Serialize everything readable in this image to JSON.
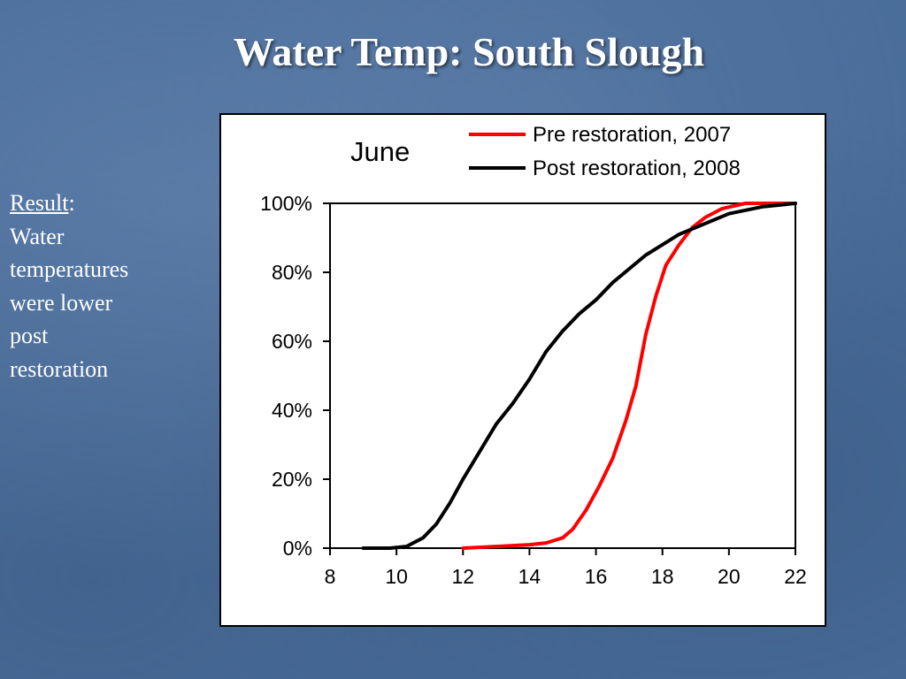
{
  "slide": {
    "title": "Water Temp: South Slough"
  },
  "result": {
    "label": "Result",
    "colon": ":",
    "lines": [
      "Water",
      "temperatures",
      "were lower",
      "post",
      "restoration"
    ]
  },
  "chart_data": {
    "type": "line",
    "title": "June",
    "xlabel": "",
    "ylabel": "",
    "xlim": [
      8,
      22
    ],
    "ylim": [
      0,
      100
    ],
    "x_ticks": [
      8,
      10,
      12,
      14,
      16,
      18,
      20,
      22
    ],
    "y_ticks": [
      "0%",
      "20%",
      "40%",
      "60%",
      "80%",
      "100%"
    ],
    "y_tick_values": [
      0,
      20,
      40,
      60,
      80,
      100
    ],
    "grid": false,
    "legend_position": "top-right",
    "series": [
      {
        "name": "Pre restoration, 2007",
        "color": "#ff0000",
        "points": [
          [
            12,
            0
          ],
          [
            13,
            0.5
          ],
          [
            14,
            1
          ],
          [
            14.5,
            1.5
          ],
          [
            15,
            3
          ],
          [
            15.3,
            5.5
          ],
          [
            15.7,
            11
          ],
          [
            16.1,
            18
          ],
          [
            16.5,
            26
          ],
          [
            16.9,
            37
          ],
          [
            17.2,
            47
          ],
          [
            17.5,
            62
          ],
          [
            17.8,
            73
          ],
          [
            18.1,
            82
          ],
          [
            18.5,
            88
          ],
          [
            18.9,
            93
          ],
          [
            19.3,
            96
          ],
          [
            19.8,
            98.5
          ],
          [
            20.5,
            100
          ],
          [
            21.5,
            100
          ],
          [
            22,
            100
          ]
        ]
      },
      {
        "name": "Post restoration, 2008",
        "color": "#000000",
        "points": [
          [
            9,
            0
          ],
          [
            9.8,
            0
          ],
          [
            10.3,
            0.5
          ],
          [
            10.8,
            3
          ],
          [
            11.2,
            7
          ],
          [
            11.6,
            13
          ],
          [
            12,
            20
          ],
          [
            12.5,
            28
          ],
          [
            13,
            36
          ],
          [
            13.5,
            42
          ],
          [
            14,
            49
          ],
          [
            14.5,
            57
          ],
          [
            15,
            63
          ],
          [
            15.5,
            68
          ],
          [
            16,
            72
          ],
          [
            16.5,
            77
          ],
          [
            17,
            81
          ],
          [
            17.5,
            85
          ],
          [
            18,
            88
          ],
          [
            18.5,
            91
          ],
          [
            19,
            93
          ],
          [
            19.5,
            95
          ],
          [
            20,
            97
          ],
          [
            21,
            99
          ],
          [
            22,
            100
          ]
        ]
      }
    ]
  }
}
